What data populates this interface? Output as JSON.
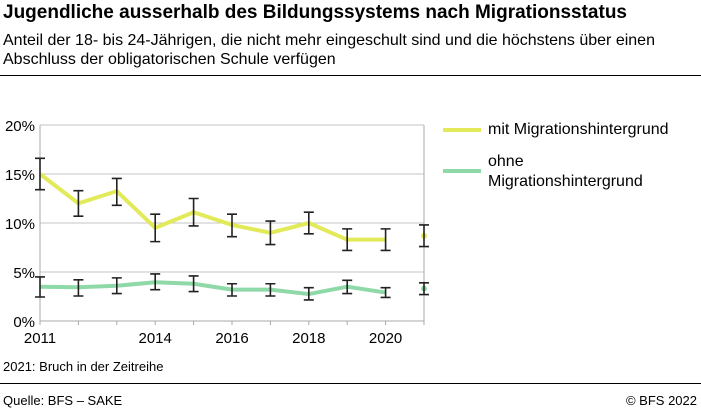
{
  "title": "Jugendliche ausserhalb des Bildungssystems nach Migrationsstatus",
  "subtitle": "Anteil der 18- bis 24-Jährigen, die nicht mehr eingeschult sind und die höchstens über einen Abschluss der obligatorischen Schule verfügen",
  "footnote": "2021: Bruch in der Zeitreihe",
  "source": "Quelle: BFS – SAKE",
  "copyright": "© BFS 2022",
  "chart_data": {
    "type": "line",
    "x": [
      2011,
      2012,
      2013,
      2014,
      2015,
      2016,
      2017,
      2018,
      2019,
      2020,
      2021
    ],
    "xticks": [
      "2011",
      "2014",
      "2016",
      "2018",
      "2020"
    ],
    "yticks": [
      "0%",
      "5%",
      "10%",
      "15%",
      "20%"
    ],
    "ylim": [
      0,
      20
    ],
    "grid": true,
    "legend": "right",
    "series": [
      {
        "name": "mit Migrationshintergrund",
        "color": "#e3ea5a",
        "values": [
          15.0,
          12.0,
          13.25,
          9.5,
          11.1,
          9.8,
          9.0,
          10.0,
          8.3,
          8.3,
          8.7
        ],
        "lower": [
          13.4,
          10.7,
          11.8,
          8.1,
          9.7,
          8.6,
          7.8,
          8.9,
          7.2,
          7.2,
          7.6
        ],
        "upper": [
          16.6,
          13.3,
          14.55,
          10.9,
          12.5,
          10.9,
          10.2,
          11.1,
          9.4,
          9.4,
          9.8
        ]
      },
      {
        "name": "ohne Migrationshintergrund",
        "color": "#8fd8a8",
        "values": [
          3.5,
          3.45,
          3.6,
          3.95,
          3.8,
          3.2,
          3.2,
          2.75,
          3.5,
          2.9,
          3.3
        ],
        "lower": [
          2.45,
          2.55,
          2.8,
          3.2,
          3.0,
          2.55,
          2.55,
          2.15,
          2.8,
          2.4,
          2.7
        ],
        "upper": [
          4.5,
          4.2,
          4.4,
          4.8,
          4.6,
          3.8,
          3.8,
          3.4,
          4.15,
          3.4,
          3.9
        ]
      }
    ]
  }
}
